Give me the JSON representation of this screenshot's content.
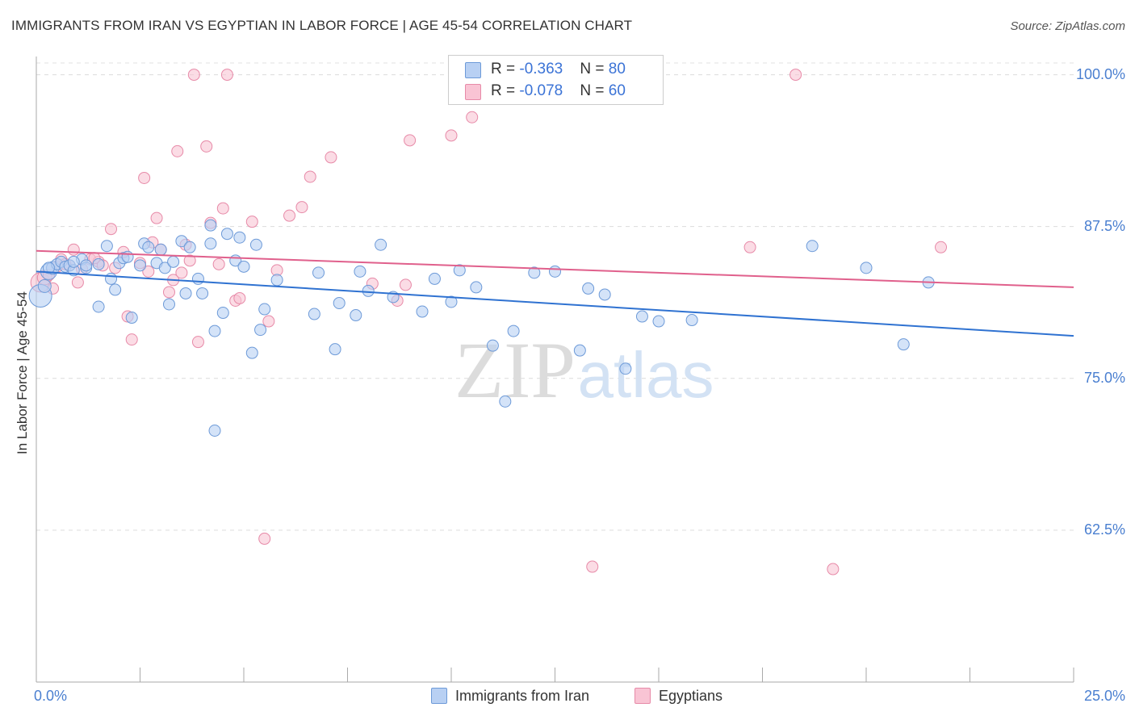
{
  "title": "IMMIGRANTS FROM IRAN VS EGYPTIAN IN LABOR FORCE | AGE 45-54 CORRELATION CHART",
  "source": "Source: ZipAtlas.com",
  "watermark": {
    "zip": "ZIP",
    "atlas": "atlas"
  },
  "legend_top": {
    "rows": [
      {
        "r_label": "R = ",
        "r_value": "-0.363",
        "n_label": "N = ",
        "n_value": "80"
      },
      {
        "r_label": "R = ",
        "r_value": "-0.078",
        "n_label": "N = ",
        "n_value": "60"
      }
    ]
  },
  "chart_data": {
    "type": "scatter",
    "title": "IMMIGRANTS FROM IRAN VS EGYPTIAN IN LABOR FORCE | AGE 45-54 CORRELATION CHART",
    "xlabel": "",
    "ylabel": "In Labor Force | Age 45-54",
    "xlim": [
      0,
      25
    ],
    "ylim": [
      50,
      101.5
    ],
    "x_tick_labels": [
      "0.0%",
      "25.0%"
    ],
    "y_ticks": [
      62.5,
      75.0,
      87.5,
      100.0
    ],
    "y_tick_labels": [
      "62.5%",
      "75.0%",
      "87.5%",
      "100.0%"
    ],
    "grid": true,
    "colors": {
      "iran_fill": "#b8d0f3",
      "iran_stroke": "#6d9ad8",
      "iran_line": "#2f72d1",
      "egypt_fill": "#f9c4d4",
      "egypt_stroke": "#e78aa8",
      "egypt_line": "#e0608c"
    },
    "series": [
      {
        "name": "Immigrants from Iran",
        "r": -0.363,
        "n": 80,
        "trend": {
          "x": [
            0,
            25
          ],
          "y": [
            83.8,
            78.5
          ]
        },
        "points": [
          [
            0.1,
            81.8,
            14
          ],
          [
            0.2,
            82.6,
            8
          ],
          [
            0.3,
            83.8,
            10
          ],
          [
            0.4,
            84.1,
            8
          ],
          [
            0.5,
            84.4,
            7
          ],
          [
            0.6,
            84.6,
            7
          ],
          [
            0.7,
            84.2,
            7
          ],
          [
            0.8,
            84.3,
            7
          ],
          [
            0.9,
            83.9,
            7
          ],
          [
            1.1,
            84.8,
            7
          ],
          [
            1.2,
            84.1,
            7
          ],
          [
            1.5,
            84.4,
            7
          ],
          [
            1.5,
            80.9,
            7
          ],
          [
            1.7,
            85.9,
            7
          ],
          [
            1.8,
            83.2,
            7
          ],
          [
            1.9,
            82.3,
            7
          ],
          [
            2.0,
            84.5,
            7
          ],
          [
            2.1,
            84.9,
            7
          ],
          [
            2.3,
            80.0,
            7
          ],
          [
            2.5,
            84.3,
            7
          ],
          [
            2.6,
            86.1,
            7
          ],
          [
            2.7,
            85.8,
            7
          ],
          [
            2.9,
            84.5,
            7
          ],
          [
            3.0,
            85.6,
            7
          ],
          [
            3.1,
            84.1,
            7
          ],
          [
            3.2,
            81.1,
            7
          ],
          [
            3.3,
            84.6,
            7
          ],
          [
            3.5,
            86.3,
            7
          ],
          [
            3.6,
            82.0,
            7
          ],
          [
            3.7,
            85.8,
            7
          ],
          [
            3.9,
            83.2,
            7
          ],
          [
            4.0,
            82.0,
            7
          ],
          [
            4.2,
            87.6,
            7
          ],
          [
            4.2,
            86.1,
            7
          ],
          [
            4.3,
            78.9,
            7
          ],
          [
            4.5,
            80.4,
            7
          ],
          [
            4.6,
            86.9,
            7
          ],
          [
            4.8,
            84.7,
            7
          ],
          [
            4.9,
            86.6,
            7
          ],
          [
            5.0,
            84.2,
            7
          ],
          [
            5.2,
            77.1,
            7
          ],
          [
            5.3,
            86.0,
            7
          ],
          [
            5.4,
            79.0,
            7
          ],
          [
            5.5,
            80.7,
            7
          ],
          [
            5.8,
            83.1,
            7
          ],
          [
            4.3,
            70.7,
            7
          ],
          [
            6.7,
            80.3,
            7
          ],
          [
            6.8,
            83.7,
            7
          ],
          [
            7.2,
            77.4,
            7
          ],
          [
            7.3,
            81.2,
            7
          ],
          [
            7.7,
            80.2,
            7
          ],
          [
            7.8,
            83.8,
            7
          ],
          [
            8.0,
            82.2,
            7
          ],
          [
            8.3,
            86.0,
            7
          ],
          [
            8.6,
            81.7,
            7
          ],
          [
            9.3,
            80.5,
            7
          ],
          [
            9.6,
            83.2,
            7
          ],
          [
            10.0,
            81.3,
            7
          ],
          [
            10.2,
            83.9,
            7
          ],
          [
            10.6,
            82.5,
            7
          ],
          [
            11.0,
            77.7,
            7
          ],
          [
            11.3,
            73.1,
            7
          ],
          [
            11.5,
            78.9,
            7
          ],
          [
            12.0,
            83.7,
            7
          ],
          [
            12.5,
            83.8,
            7
          ],
          [
            13.1,
            77.3,
            7
          ],
          [
            13.3,
            82.4,
            7
          ],
          [
            13.7,
            81.9,
            7
          ],
          [
            14.2,
            75.8,
            7
          ],
          [
            14.6,
            80.1,
            7
          ],
          [
            15.0,
            79.7,
            7
          ],
          [
            15.8,
            79.8,
            7
          ],
          [
            18.7,
            85.9,
            7
          ],
          [
            20.0,
            84.1,
            7
          ],
          [
            20.9,
            77.8,
            7
          ],
          [
            21.5,
            82.9,
            7
          ],
          [
            0.3,
            84.1,
            7
          ],
          [
            1.2,
            84.3,
            7
          ],
          [
            2.2,
            85.0,
            7
          ],
          [
            0.9,
            84.6,
            7
          ]
        ]
      },
      {
        "name": "Egyptians",
        "r": -0.078,
        "n": 60,
        "trend": {
          "x": [
            0,
            25
          ],
          "y": [
            85.5,
            82.5
          ]
        },
        "points": [
          [
            0.1,
            82.9,
            12
          ],
          [
            0.2,
            83.3,
            9
          ],
          [
            0.3,
            83.5,
            7
          ],
          [
            0.4,
            82.4,
            7
          ],
          [
            0.5,
            84.2,
            7
          ],
          [
            0.6,
            84.8,
            7
          ],
          [
            0.8,
            84.3,
            7
          ],
          [
            0.9,
            85.6,
            7
          ],
          [
            1.0,
            82.9,
            7
          ],
          [
            1.1,
            84.0,
            7
          ],
          [
            1.3,
            84.8,
            7
          ],
          [
            1.5,
            84.6,
            7
          ],
          [
            1.6,
            84.3,
            7
          ],
          [
            1.8,
            87.3,
            7
          ],
          [
            1.9,
            84.1,
            7
          ],
          [
            2.1,
            85.4,
            7
          ],
          [
            2.2,
            80.1,
            7
          ],
          [
            2.3,
            78.2,
            7
          ],
          [
            2.5,
            84.5,
            7
          ],
          [
            2.6,
            91.5,
            7
          ],
          [
            2.7,
            83.8,
            7
          ],
          [
            2.8,
            86.2,
            7
          ],
          [
            2.9,
            88.2,
            7
          ],
          [
            3.0,
            85.6,
            7
          ],
          [
            3.2,
            82.1,
            7
          ],
          [
            3.3,
            83.1,
            7
          ],
          [
            3.4,
            93.7,
            7
          ],
          [
            3.5,
            83.7,
            7
          ],
          [
            3.7,
            84.7,
            7
          ],
          [
            3.8,
            100.0,
            7
          ],
          [
            3.9,
            78.0,
            7
          ],
          [
            4.1,
            94.1,
            7
          ],
          [
            4.2,
            87.8,
            7
          ],
          [
            4.4,
            84.4,
            7
          ],
          [
            4.5,
            89.0,
            7
          ],
          [
            4.6,
            100.0,
            7
          ],
          [
            4.8,
            81.4,
            7
          ],
          [
            4.9,
            81.6,
            7
          ],
          [
            5.2,
            87.9,
            7
          ],
          [
            5.6,
            79.7,
            7
          ],
          [
            5.5,
            61.8,
            7
          ],
          [
            5.8,
            83.9,
            7
          ],
          [
            6.1,
            88.4,
            7
          ],
          [
            6.4,
            89.1,
            7
          ],
          [
            6.6,
            91.6,
            7
          ],
          [
            7.1,
            93.2,
            7
          ],
          [
            8.1,
            82.8,
            7
          ],
          [
            8.7,
            81.4,
            7
          ],
          [
            8.9,
            82.7,
            7
          ],
          [
            9.0,
            94.6,
            7
          ],
          [
            10.0,
            95.0,
            7
          ],
          [
            10.5,
            96.5,
            7
          ],
          [
            13.4,
            59.5,
            7
          ],
          [
            17.2,
            85.8,
            7
          ],
          [
            18.3,
            100.0,
            7
          ],
          [
            19.2,
            59.3,
            7
          ],
          [
            21.8,
            85.8,
            7
          ],
          [
            0.7,
            84.4,
            7
          ],
          [
            1.4,
            84.9,
            7
          ],
          [
            3.6,
            86.0,
            7
          ]
        ]
      }
    ]
  },
  "bottom_legend": {
    "iran": "Immigrants from Iran",
    "egypt": "Egyptians"
  }
}
